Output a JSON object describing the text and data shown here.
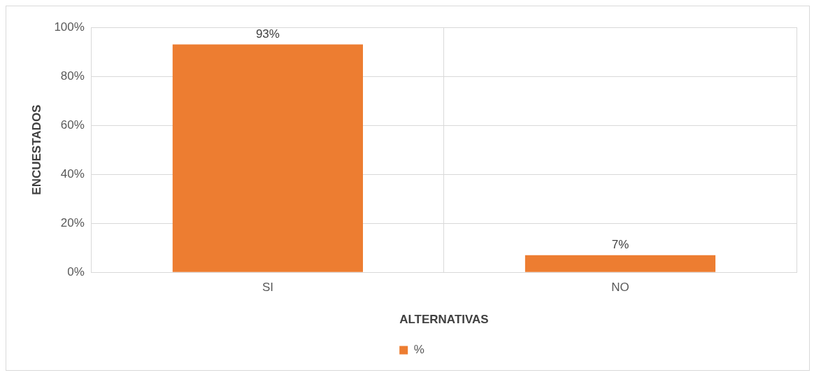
{
  "chart_data": {
    "type": "bar",
    "xlabel": "ALTERNATIVAS",
    "ylabel": "ENCUESTADOS",
    "categories": [
      "SI",
      "NO"
    ],
    "series": [
      {
        "name": "%",
        "color": "#ed7d31",
        "values": [
          93,
          7
        ],
        "value_labels": [
          "93%",
          "7%"
        ]
      }
    ],
    "ylim": [
      0,
      100
    ],
    "yticks": [
      {
        "value": 0,
        "label": "0%"
      },
      {
        "value": 20,
        "label": "20%"
      },
      {
        "value": 40,
        "label": "40%"
      },
      {
        "value": 60,
        "label": "60%"
      },
      {
        "value": 80,
        "label": "80%"
      },
      {
        "value": 100,
        "label": "100%"
      }
    ],
    "grid": true,
    "legend": "bottom"
  }
}
